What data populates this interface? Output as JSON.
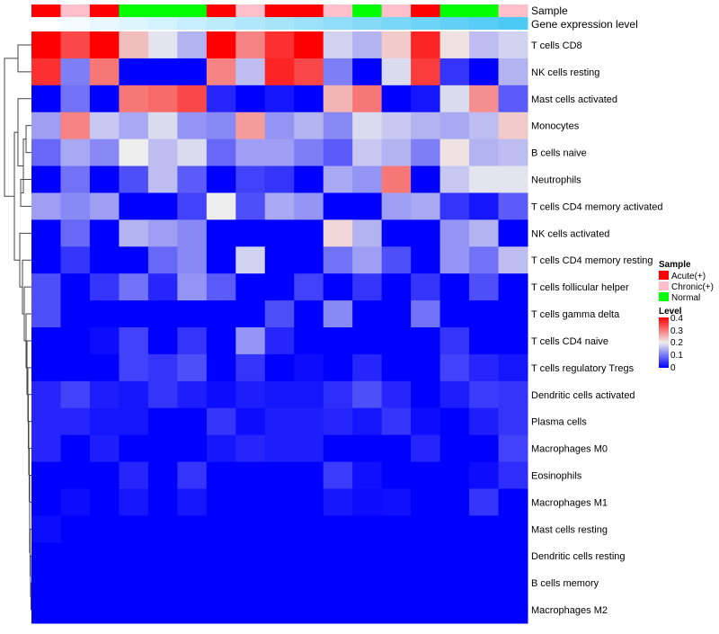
{
  "chart_data": {
    "type": "heatmap",
    "title": "",
    "annotation_labels": {
      "sample": "Sample",
      "gene": "Gene expression level"
    },
    "sample_colors": {
      "Acute(+)": "#ff0000",
      "Chronic(+)": "#ffc0cb",
      "Normal": "#00ff00"
    },
    "samples": [
      "Acute(+)",
      "Chronic(+)",
      "Acute(+)",
      "Normal",
      "Normal",
      "Normal",
      "Acute(+)",
      "Chronic(+)",
      "Acute(+)",
      "Acute(+)",
      "Chronic(+)",
      "Normal",
      "Chronic(+)",
      "Acute(+)",
      "Normal",
      "Normal",
      "Chronic(+)"
    ],
    "gene_expression_gradient": [
      "#ffffff",
      "#4cc9f5"
    ],
    "rows": [
      "T cells CD8",
      "NK cells resting",
      "Mast cells activated",
      "Monocytes",
      "B cells naive",
      "Neutrophils",
      "T cells CD4 memory activated",
      "NK cells activated",
      "T cells CD4 memory resting",
      "T cells follicular helper",
      "T cells gamma delta",
      "T cells CD4 naive",
      "T cells regulatory  Tregs",
      "Dendritic cells activated",
      "Plasma cells",
      "Macrophages M0",
      "Eosinophils",
      "Macrophages M1",
      "Mast cells resting",
      "Dendritic cells resting",
      "B cells memory",
      "Macrophages M2"
    ],
    "values": [
      [
        0.4,
        0.34,
        0.4,
        0.24,
        0.19,
        0.14,
        0.4,
        0.29,
        0.36,
        0.4,
        0.17,
        0.14,
        0.23,
        0.37,
        0.21,
        0.15,
        0.17
      ],
      [
        0.36,
        0.09,
        0.3,
        0,
        0,
        0,
        0.29,
        0.15,
        0.37,
        0.34,
        0.09,
        0,
        0.18,
        0.35,
        0.03,
        0,
        0.14
      ],
      [
        0,
        0.08,
        0,
        0.3,
        0.31,
        0.34,
        0.02,
        0,
        0.01,
        0,
        0.25,
        0.3,
        0,
        0.01,
        0.18,
        0.28,
        0.06
      ],
      [
        0.12,
        0.29,
        0.16,
        0.13,
        0.18,
        0.11,
        0.1,
        0.27,
        0.11,
        0.14,
        0.1,
        0.18,
        0.16,
        0.14,
        0.13,
        0.15,
        0.23
      ],
      [
        0.07,
        0.13,
        0.1,
        0.2,
        0.15,
        0.18,
        0.07,
        0.12,
        0.12,
        0.09,
        0.06,
        0.16,
        0.14,
        0.09,
        0.21,
        0.14,
        0.15
      ],
      [
        0,
        0.08,
        0,
        0.05,
        0.15,
        0.06,
        0,
        0.04,
        0.03,
        0,
        0.13,
        0.11,
        0.3,
        0,
        0.16,
        0.19,
        0.19
      ],
      [
        0.12,
        0.1,
        0.12,
        0,
        0,
        0.04,
        0.2,
        0.05,
        0.13,
        0.11,
        0,
        0,
        0.12,
        0.13,
        0.03,
        0.01,
        0.06
      ],
      [
        0,
        0.07,
        0,
        0.14,
        0.12,
        0.1,
        0,
        0,
        0,
        0,
        0.22,
        0.14,
        0,
        0,
        0.11,
        0.14,
        0
      ],
      [
        0,
        0.03,
        0,
        0,
        0.07,
        0.1,
        0,
        0.17,
        0,
        0,
        0.08,
        0.12,
        0.05,
        0,
        0.11,
        0.08,
        0.15
      ],
      [
        0.05,
        0,
        0.03,
        0.08,
        0.02,
        0.11,
        0.06,
        0,
        0,
        0.04,
        0,
        0.03,
        0,
        0.03,
        0,
        0.05,
        0
      ],
      [
        0.05,
        0,
        0,
        0,
        0,
        0,
        0,
        0,
        0.05,
        0,
        0.1,
        0,
        0,
        0.08,
        0,
        0,
        0
      ],
      [
        0,
        0,
        0.005,
        0.04,
        0,
        0.03,
        0,
        0.11,
        0.02,
        0,
        0,
        0,
        0,
        0,
        0.03,
        0,
        0
      ],
      [
        0,
        0,
        0,
        0.04,
        0.03,
        0.05,
        0,
        0.03,
        0,
        0.005,
        0,
        0.02,
        0,
        0,
        0.04,
        0.02,
        0.01
      ],
      [
        0.02,
        0.04,
        0.015,
        0.01,
        0.03,
        0.015,
        0.005,
        0.015,
        0.01,
        0.01,
        0.025,
        0.05,
        0.02,
        0,
        0.015,
        0.035,
        0.03
      ],
      [
        0.02,
        0.02,
        0.01,
        0.01,
        0,
        0,
        0.03,
        0.005,
        0.015,
        0.015,
        0.02,
        0.01,
        0.03,
        0.005,
        0,
        0.015,
        0.03
      ],
      [
        0.02,
        0,
        0.015,
        0,
        0,
        0,
        0.01,
        0.02,
        0.015,
        0.015,
        0,
        0,
        0,
        0.02,
        0,
        0,
        0.04
      ],
      [
        0,
        0,
        0,
        0.02,
        0,
        0.03,
        0,
        0,
        0,
        0,
        0.035,
        0.007,
        0,
        0,
        0,
        0.005,
        0.025
      ],
      [
        0,
        0.005,
        0,
        0.01,
        0,
        0.01,
        0,
        0,
        0,
        0,
        0.01,
        0.005,
        0.007,
        0,
        0,
        0.03,
        0
      ],
      [
        0.005,
        0,
        0,
        0,
        0,
        0,
        0,
        0,
        0,
        0,
        0,
        0,
        0,
        0,
        0,
        0,
        0
      ],
      [
        0,
        0,
        0,
        0,
        0,
        0,
        0,
        0,
        0,
        0,
        0,
        0,
        0,
        0,
        0,
        0,
        0
      ],
      [
        0,
        0,
        0,
        0,
        0,
        0,
        0,
        0,
        0,
        0,
        0,
        0,
        0,
        0,
        0,
        0,
        0
      ],
      [
        0,
        0,
        0,
        0,
        0,
        0,
        0,
        0,
        0,
        0,
        0,
        0,
        0,
        0,
        0,
        0,
        0
      ]
    ],
    "color_scale": {
      "min": 0,
      "mid": 0.2,
      "max": 0.4,
      "low": "#0000ff",
      "midColor": "#eeeeee",
      "high": "#ff0000"
    },
    "legend": {
      "sample_title": "Sample",
      "sample_entries": [
        "Acute(+)",
        "Chronic(+)",
        "Normal"
      ],
      "level_title": "Level",
      "level_ticks": [
        "0.4",
        "0.3",
        "0.2",
        "0.1",
        "0"
      ],
      "placement": "right"
    }
  }
}
